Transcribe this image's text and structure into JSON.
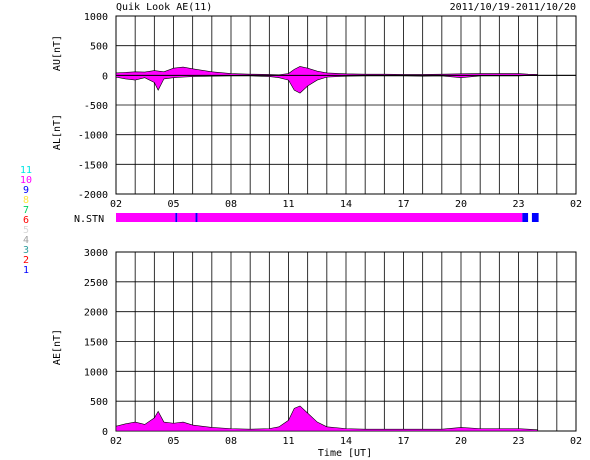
{
  "header": {
    "title": "Quik Look AE(11)",
    "date_range": "2011/10/19-2011/10/20"
  },
  "colors": {
    "fill": "#ff00ff",
    "grid": "#000000",
    "station_blue": "#0000ff"
  },
  "legend": {
    "entries": [
      {
        "label": "11",
        "color": "#00e5e5"
      },
      {
        "label": "10",
        "color": "#ff00ff"
      },
      {
        "label": "9",
        "color": "#0000ff"
      },
      {
        "label": "8",
        "color": "#ffe640"
      },
      {
        "label": "7",
        "color": "#00d060"
      },
      {
        "label": "6",
        "color": "#ff0000"
      },
      {
        "label": "5",
        "color": "#d8d8d8"
      },
      {
        "label": "4",
        "color": "#a0a0a0"
      },
      {
        "label": "3",
        "color": "#30a0a0"
      },
      {
        "label": "2",
        "color": "#ff0000"
      },
      {
        "label": "1",
        "color": "#0000ff"
      }
    ]
  },
  "xaxis": {
    "title": "Time [UT]",
    "tick_labels": [
      "02",
      "05",
      "08",
      "11",
      "14",
      "17",
      "20",
      "23",
      "02"
    ],
    "range_hours": [
      2,
      26
    ]
  },
  "chart_data": [
    {
      "type": "area",
      "name": "AU/AL",
      "ylabel_top": "AU[nT]",
      "ylabel_bottom": "AL[nT]",
      "ylim": [
        -2000,
        1000
      ],
      "yticks": [
        1000,
        500,
        0,
        -500,
        -1000,
        -1500,
        -2000
      ],
      "grid": true,
      "au": {
        "x": [
          2,
          2.5,
          3,
          3.5,
          4,
          4.5,
          5,
          5.5,
          6,
          7,
          8,
          9,
          10,
          10.5,
          11,
          11.3,
          11.6,
          12,
          12.5,
          13,
          14,
          15,
          16,
          17,
          18,
          19,
          20,
          21,
          22,
          23,
          23.5,
          24
        ],
        "y": [
          40,
          50,
          60,
          55,
          80,
          60,
          120,
          140,
          110,
          60,
          30,
          20,
          15,
          10,
          30,
          100,
          150,
          120,
          70,
          40,
          25,
          20,
          20,
          15,
          15,
          20,
          25,
          30,
          30,
          30,
          20,
          15
        ]
      },
      "al": {
        "x": [
          2,
          2.5,
          3,
          3.5,
          4,
          4.2,
          4.5,
          5,
          5.5,
          6,
          7,
          8,
          9,
          10,
          10.5,
          11,
          11.3,
          11.6,
          12,
          12.5,
          13,
          14,
          15,
          16,
          17,
          18,
          19,
          20,
          21,
          22,
          23,
          23.5,
          24
        ],
        "y": [
          -30,
          -60,
          -80,
          -40,
          -120,
          -250,
          -60,
          -40,
          -30,
          -20,
          -15,
          -10,
          -10,
          -20,
          -40,
          -80,
          -250,
          -300,
          -180,
          -80,
          -30,
          -15,
          -10,
          -10,
          -10,
          -15,
          -10,
          -40,
          -10,
          -10,
          -10,
          -5,
          -5
        ]
      }
    },
    {
      "type": "bar",
      "name": "station count",
      "label": "N.STN",
      "segments": [
        {
          "start": 2,
          "end": 5.1,
          "color": "#ff00ff"
        },
        {
          "start": 5.1,
          "end": 5.2,
          "color": "#0000ff"
        },
        {
          "start": 5.2,
          "end": 6.15,
          "color": "#ff00ff"
        },
        {
          "start": 6.15,
          "end": 6.25,
          "color": "#0000ff"
        },
        {
          "start": 6.25,
          "end": 23.2,
          "color": "#ff00ff"
        },
        {
          "start": 23.2,
          "end": 23.5,
          "color": "#0000ff"
        },
        {
          "start": 23.7,
          "end": 24.05,
          "color": "#0000ff"
        }
      ]
    },
    {
      "type": "area",
      "name": "AE",
      "ylabel": "AE[nT]",
      "ylim": [
        0,
        3000
      ],
      "yticks": [
        3000,
        2500,
        2000,
        1500,
        1000,
        500,
        0
      ],
      "grid": true,
      "x": [
        2,
        2.5,
        3,
        3.5,
        4,
        4.2,
        4.5,
        5,
        5.5,
        6,
        7,
        8,
        9,
        10,
        10.5,
        11,
        11.3,
        11.6,
        12,
        12.5,
        13,
        14,
        15,
        16,
        17,
        18,
        19,
        20,
        21,
        22,
        23,
        23.5,
        24
      ],
      "y": [
        80,
        120,
        150,
        110,
        220,
        330,
        150,
        130,
        150,
        100,
        60,
        40,
        30,
        40,
        70,
        180,
        380,
        420,
        300,
        150,
        70,
        40,
        30,
        30,
        30,
        30,
        30,
        60,
        40,
        40,
        40,
        30,
        20
      ]
    }
  ]
}
